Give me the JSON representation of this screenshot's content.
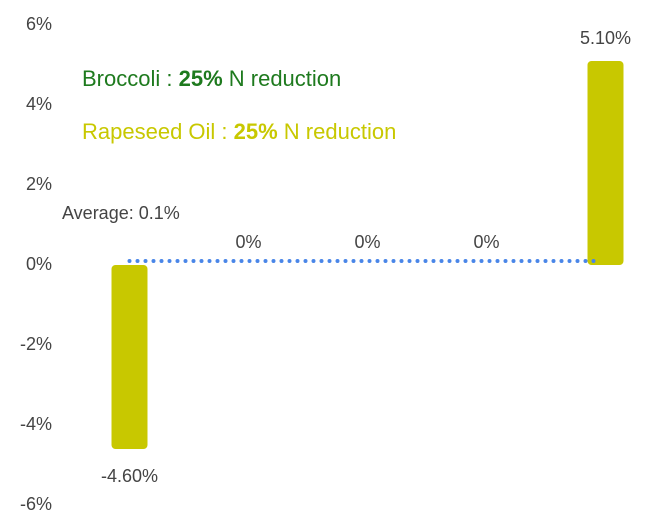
{
  "chart_data": {
    "type": "bar",
    "categories": [
      null,
      null,
      null,
      null,
      null
    ],
    "values": [
      -4.6,
      0,
      0,
      0,
      5.1
    ],
    "value_labels": [
      "-4.60%",
      "0%",
      "0%",
      "0%",
      "5.10%"
    ],
    "colors": [
      "#c8c800",
      "#0b5e0b",
      "#0b5e0b",
      "#0b5e0b",
      "#c8c800"
    ],
    "ylim": [
      -6,
      6
    ],
    "yticks": [
      {
        "value": -6,
        "label": "-6%"
      },
      {
        "value": -4,
        "label": "-4%"
      },
      {
        "value": -2,
        "label": "-2%"
      },
      {
        "value": 0,
        "label": "0%"
      },
      {
        "value": 2,
        "label": "2%"
      },
      {
        "value": 4,
        "label": "4%"
      },
      {
        "value": 6,
        "label": "6%"
      }
    ],
    "grid": false,
    "average": {
      "value": 0.1,
      "label": "Average: 0.1%",
      "color": "#4a86e8"
    },
    "annotations": [
      {
        "parts": [
          "Broccoli : ",
          "25%",
          " N reduction"
        ],
        "color": "#1e7a1e"
      },
      {
        "parts": [
          "Rapeseed Oil : ",
          "25%",
          " N reduction"
        ],
        "color": "#c8c800"
      }
    ]
  }
}
